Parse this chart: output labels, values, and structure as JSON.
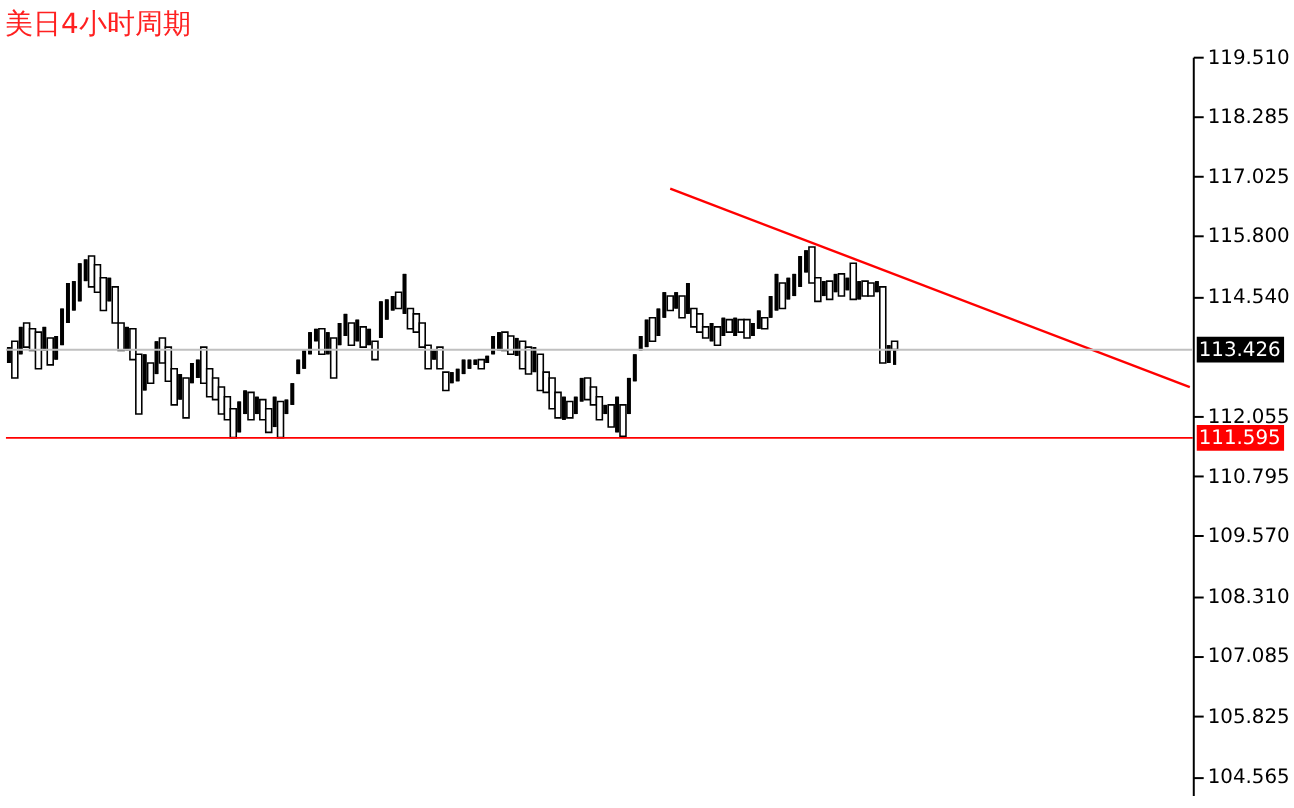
{
  "chart_data": {
    "type": "candlestick",
    "title": "美日4小时周期",
    "color": "#000000",
    "categories": [
      null,
      null,
      null,
      null,
      null,
      null,
      null,
      null,
      null,
      null,
      null,
      null,
      null,
      null,
      null,
      null,
      null,
      null,
      null,
      null,
      null,
      null,
      null,
      null,
      null,
      null,
      null,
      null,
      null,
      null,
      null,
      null,
      null,
      null,
      null,
      null,
      null,
      null,
      null,
      null,
      null,
      null,
      null,
      null,
      null,
      null,
      null,
      null,
      null,
      null,
      null,
      null,
      null,
      null,
      null,
      null,
      null,
      null,
      null,
      null,
      null,
      null,
      null,
      null,
      null,
      null,
      null,
      null,
      null,
      null,
      null,
      null,
      null,
      null,
      null,
      null,
      null,
      null,
      null,
      null,
      null,
      null,
      null,
      null,
      null,
      null,
      null,
      null,
      null,
      null,
      null,
      null,
      null,
      null,
      null,
      null,
      null,
      null,
      null,
      null,
      null,
      null,
      null,
      null,
      null,
      null,
      null,
      null,
      null,
      null,
      null,
      null,
      null,
      null,
      null,
      null,
      null,
      null,
      null,
      null,
      null,
      null,
      null,
      null,
      null,
      null,
      null,
      null,
      null,
      null,
      null,
      null,
      null,
      null,
      null,
      null,
      null,
      null,
      null,
      null,
      null,
      null,
      null,
      null,
      null,
      null,
      null,
      null,
      null,
      null,
      null,
      null,
      null,
      null,
      null,
      null,
      null,
      null,
      null,
      null,
      null,
      null,
      null,
      null,
      null,
      null,
      null,
      null,
      null,
      null,
      null,
      null,
      null,
      null,
      null,
      null,
      null,
      null,
      null,
      null,
      null,
      null,
      null,
      null,
      null,
      null,
      null,
      null,
      null,
      null,
      null,
      null,
      null,
      null,
      null,
      null,
      null,
      null,
      null,
      null,
      null
    ],
    "ohlc": [
      [
        113.15,
        113.48,
        113.15,
        113.48
      ],
      [
        113.6,
        113.6,
        112.84,
        112.84
      ],
      [
        113.33,
        113.9,
        113.33,
        113.9
      ],
      [
        113.98,
        113.98,
        113.48,
        113.48
      ],
      [
        113.86,
        113.86,
        113.41,
        113.41
      ],
      [
        113.79,
        113.79,
        113.03,
        113.03
      ],
      [
        113.41,
        113.9,
        113.41,
        113.9
      ],
      [
        113.67,
        113.67,
        113.11,
        113.11
      ],
      [
        113.22,
        113.71,
        113.22,
        113.71
      ],
      [
        113.52,
        114.28,
        113.52,
        114.28
      ],
      [
        113.98,
        114.81,
        113.98,
        114.81
      ],
      [
        114.24,
        114.85,
        114.24,
        114.85
      ],
      [
        114.43,
        115.22,
        114.43,
        115.22
      ],
      [
        114.85,
        115.3,
        114.85,
        115.3
      ],
      [
        115.37,
        115.37,
        114.73,
        114.73
      ],
      [
        115.19,
        115.19,
        114.62,
        114.62
      ],
      [
        114.92,
        114.92,
        114.24,
        114.24
      ],
      [
        114.43,
        114.92,
        114.43,
        114.92
      ],
      [
        114.73,
        114.73,
        113.98,
        113.98
      ],
      [
        113.98,
        113.98,
        113.41,
        113.41
      ],
      [
        113.41,
        113.9,
        113.41,
        113.9
      ],
      [
        113.86,
        113.86,
        113.22,
        113.22
      ],
      [
        113.33,
        113.33,
        112.09,
        112.09
      ],
      [
        112.58,
        113.33,
        112.58,
        113.33
      ],
      [
        113.15,
        113.15,
        112.73,
        112.73
      ],
      [
        112.92,
        113.6,
        112.92,
        113.6
      ],
      [
        113.67,
        113.67,
        113.15,
        113.15
      ],
      [
        113.48,
        113.48,
        112.77,
        112.77
      ],
      [
        113.03,
        113.03,
        112.28,
        112.28
      ],
      [
        112.39,
        112.92,
        112.39,
        112.92
      ],
      [
        112.84,
        112.84,
        112.01,
        112.01
      ],
      [
        112.73,
        113.15,
        112.73,
        113.15
      ],
      [
        112.84,
        113.22,
        112.84,
        113.22
      ],
      [
        113.48,
        113.48,
        112.73,
        112.73
      ],
      [
        113.03,
        113.03,
        112.45,
        112.45
      ],
      [
        112.84,
        112.84,
        112.39,
        112.39
      ],
      [
        112.65,
        112.65,
        112.09,
        112.09
      ],
      [
        112.45,
        112.45,
        111.97,
        111.97
      ],
      [
        112.2,
        112.2,
        111.6,
        111.6
      ],
      [
        111.71,
        112.35,
        111.71,
        112.35
      ],
      [
        112.09,
        112.58,
        112.09,
        112.58
      ],
      [
        112.54,
        112.54,
        111.97,
        111.97
      ],
      [
        112.09,
        112.45,
        112.09,
        112.45
      ],
      [
        112.39,
        112.39,
        111.97,
        111.97
      ],
      [
        112.2,
        112.2,
        111.71,
        111.71
      ],
      [
        111.82,
        112.45,
        111.82,
        112.45
      ],
      [
        112.35,
        112.35,
        111.6,
        111.6
      ],
      [
        112.09,
        112.39,
        112.09,
        112.39
      ],
      [
        112.28,
        112.73,
        112.28,
        112.73
      ],
      [
        112.92,
        113.22,
        112.92,
        113.22
      ],
      [
        113.03,
        113.41,
        113.03,
        113.41
      ],
      [
        113.33,
        113.79,
        113.33,
        113.79
      ],
      [
        113.6,
        113.86,
        113.6,
        113.86
      ],
      [
        113.86,
        113.86,
        113.33,
        113.33
      ],
      [
        113.33,
        113.79,
        113.33,
        113.79
      ],
      [
        113.67,
        113.67,
        112.84,
        112.84
      ],
      [
        113.52,
        113.98,
        113.52,
        113.98
      ],
      [
        113.71,
        114.17,
        113.71,
        114.17
      ],
      [
        113.98,
        113.98,
        113.52,
        113.52
      ],
      [
        113.6,
        114.05,
        113.6,
        114.05
      ],
      [
        113.9,
        113.9,
        113.48,
        113.48
      ],
      [
        113.52,
        113.86,
        113.52,
        113.86
      ],
      [
        113.6,
        113.6,
        113.22,
        113.22
      ],
      [
        113.67,
        114.43,
        113.67,
        114.43
      ],
      [
        114.05,
        114.47,
        114.05,
        114.47
      ],
      [
        114.24,
        114.54,
        114.24,
        114.54
      ],
      [
        114.62,
        114.62,
        114.28,
        114.28
      ],
      [
        114.17,
        115.0,
        114.17,
        115.0
      ],
      [
        114.28,
        114.28,
        113.86,
        113.86
      ],
      [
        114.17,
        114.17,
        113.79,
        113.79
      ],
      [
        113.98,
        113.98,
        113.48,
        113.48
      ],
      [
        113.52,
        113.52,
        113.03,
        113.03
      ],
      [
        113.22,
        113.41,
        113.22,
        113.41
      ],
      [
        113.48,
        113.48,
        113.03,
        113.03
      ],
      [
        112.96,
        112.96,
        112.58,
        112.58
      ],
      [
        112.73,
        112.96,
        112.73,
        112.96
      ],
      [
        112.77,
        113.03,
        112.77,
        113.03
      ],
      [
        112.92,
        113.22,
        112.92,
        113.22
      ],
      [
        113.03,
        113.22,
        113.03,
        113.22
      ],
      [
        113.11,
        113.22,
        113.11,
        113.22
      ],
      [
        113.22,
        113.22,
        113.03,
        113.03
      ],
      [
        113.15,
        113.3,
        113.15,
        113.3
      ],
      [
        113.33,
        113.71,
        113.33,
        113.71
      ],
      [
        113.41,
        113.79,
        113.41,
        113.79
      ],
      [
        113.79,
        113.79,
        113.41,
        113.41
      ],
      [
        113.71,
        113.71,
        113.33,
        113.33
      ],
      [
        113.3,
        113.67,
        113.3,
        113.67
      ],
      [
        113.6,
        113.6,
        113.03,
        113.03
      ],
      [
        113.48,
        113.48,
        112.92,
        112.92
      ],
      [
        112.96,
        113.48,
        112.96,
        113.48
      ],
      [
        113.33,
        113.33,
        112.58,
        112.58
      ],
      [
        112.96,
        112.96,
        112.54,
        112.54
      ],
      [
        112.84,
        112.84,
        112.2,
        112.2
      ],
      [
        112.54,
        112.54,
        112.01,
        112.01
      ],
      [
        111.97,
        112.45,
        111.97,
        112.45
      ],
      [
        112.35,
        112.35,
        112.01,
        112.01
      ],
      [
        112.09,
        112.45,
        112.09,
        112.45
      ],
      [
        112.35,
        112.84,
        112.35,
        112.84
      ],
      [
        112.84,
        112.84,
        112.39,
        112.39
      ],
      [
        112.65,
        112.65,
        112.28,
        112.28
      ],
      [
        112.45,
        112.45,
        111.97,
        111.97
      ],
      [
        112.09,
        112.28,
        112.09,
        112.28
      ],
      [
        112.28,
        112.28,
        111.82,
        111.82
      ],
      [
        111.71,
        112.45,
        111.71,
        112.45
      ],
      [
        112.28,
        112.28,
        111.63,
        111.63
      ],
      [
        112.09,
        112.84,
        112.09,
        112.84
      ],
      [
        112.77,
        113.33,
        112.77,
        113.33
      ],
      [
        113.41,
        113.71,
        113.41,
        113.71
      ],
      [
        113.48,
        114.05,
        113.48,
        114.05
      ],
      [
        114.09,
        114.09,
        113.6,
        113.6
      ],
      [
        113.71,
        114.28,
        113.71,
        114.28
      ],
      [
        114.09,
        114.62,
        114.09,
        114.62
      ],
      [
        114.54,
        114.54,
        114.24,
        114.24
      ],
      [
        114.28,
        114.62,
        114.28,
        114.62
      ],
      [
        114.54,
        114.54,
        114.09,
        114.09
      ],
      [
        114.17,
        114.81,
        114.17,
        114.81
      ],
      [
        114.28,
        114.28,
        113.9,
        113.9
      ],
      [
        114.17,
        114.17,
        113.79,
        113.79
      ],
      [
        113.9,
        113.9,
        113.67,
        113.67
      ],
      [
        113.6,
        113.98,
        113.6,
        113.98
      ],
      [
        113.9,
        113.9,
        113.52,
        113.52
      ],
      [
        113.71,
        114.09,
        113.71,
        114.09
      ],
      [
        114.05,
        114.05,
        113.79,
        113.79
      ],
      [
        113.71,
        114.09,
        113.71,
        114.09
      ],
      [
        114.05,
        114.05,
        113.79,
        113.79
      ],
      [
        114.05,
        114.05,
        113.67,
        113.67
      ],
      [
        113.71,
        113.98,
        113.71,
        113.98
      ],
      [
        113.86,
        114.24,
        113.86,
        114.24
      ],
      [
        114.09,
        114.09,
        113.86,
        113.86
      ],
      [
        114.09,
        114.54,
        114.09,
        114.54
      ],
      [
        114.24,
        115.0,
        114.24,
        115.0
      ],
      [
        114.81,
        114.81,
        114.28,
        114.28
      ],
      [
        114.47,
        114.92,
        114.47,
        114.92
      ],
      [
        114.54,
        115.0,
        114.54,
        115.0
      ],
      [
        114.73,
        115.37,
        114.73,
        115.37
      ],
      [
        115.03,
        115.49,
        115.03,
        115.49
      ],
      [
        115.56,
        115.56,
        114.81,
        114.81
      ],
      [
        114.92,
        114.92,
        114.43,
        114.43
      ],
      [
        114.54,
        114.85,
        114.54,
        114.85
      ],
      [
        114.85,
        114.85,
        114.47,
        114.47
      ],
      [
        114.62,
        115.0,
        114.62,
        115.0
      ],
      [
        115.0,
        115.0,
        114.54,
        114.54
      ],
      [
        114.66,
        114.92,
        114.66,
        114.92
      ],
      [
        115.22,
        115.22,
        114.47,
        114.47
      ],
      [
        114.47,
        114.85,
        114.47,
        114.85
      ],
      [
        114.85,
        114.85,
        114.54,
        114.54
      ],
      [
        114.81,
        114.81,
        114.54,
        114.54
      ],
      [
        114.62,
        114.85,
        114.62,
        114.85
      ],
      [
        114.73,
        114.73,
        113.15,
        113.15
      ],
      [
        113.15,
        113.52,
        113.15,
        113.52
      ],
      [
        113.6,
        113.6,
        113.11,
        113.43
      ],
      null,
      null,
      null,
      null,
      null,
      null,
      null,
      null,
      null,
      null,
      null,
      null,
      null,
      null,
      null,
      null,
      null,
      null,
      null,
      null,
      null,
      null,
      null,
      null,
      null,
      null,
      null,
      null,
      null,
      null,
      null,
      null,
      null,
      null,
      null,
      null,
      null,
      null,
      null,
      null,
      null,
      null,
      null,
      null,
      null,
      null,
      null,
      null,
      null,
      null
    ],
    "series": [
      {
        "type": "line",
        "color": "#ff0000",
        "values": [
          null,
          null,
          null,
          null,
          null,
          null,
          null,
          null,
          null,
          null,
          null,
          null,
          null,
          null,
          null,
          null,
          null,
          null,
          null,
          null,
          null,
          null,
          null,
          null,
          null,
          null,
          null,
          null,
          null,
          null,
          null,
          null,
          null,
          null,
          null,
          null,
          null,
          null,
          null,
          null,
          null,
          null,
          null,
          null,
          null,
          null,
          null,
          null,
          null,
          null,
          null,
          null,
          null,
          null,
          null,
          null,
          null,
          null,
          null,
          null,
          null,
          null,
          null,
          null,
          null,
          null,
          null,
          null,
          null,
          null,
          null,
          null,
          null,
          null,
          null,
          null,
          null,
          null,
          null,
          null,
          null,
          null,
          null,
          null,
          null,
          null,
          null,
          null,
          null,
          null,
          null,
          null,
          null,
          null,
          null,
          null,
          null,
          null,
          null,
          null,
          null,
          null,
          null,
          null,
          null,
          null,
          null,
          null,
          null,
          null,
          null,
          null,
          116.77,
          null,
          null,
          null,
          null,
          null,
          null,
          null,
          null,
          null,
          null,
          null,
          null,
          null,
          null,
          null,
          null,
          null,
          null,
          null,
          null,
          null,
          null,
          null,
          null,
          null,
          null,
          null,
          null,
          null,
          null,
          null,
          null,
          null,
          null,
          null,
          null,
          null,
          null,
          null,
          null,
          null,
          null,
          null,
          null,
          null,
          null,
          null,
          null,
          null,
          null,
          null,
          null,
          null,
          null,
          null,
          null,
          null,
          null,
          null,
          null,
          null,
          null,
          null,
          null,
          null,
          null,
          null,
          null,
          null,
          null,
          null,
          null,
          null,
          null,
          null,
          null,
          null,
          null,
          null,
          null,
          null,
          null,
          null,
          null,
          null,
          null,
          null,
          112.65
        ]
      }
    ],
    "ylim": [
      104.18,
      119.51
    ],
    "yticks": [
      {
        "value": 119.51,
        "label": "119.510"
      },
      118.285,
      117.025,
      {
        "value": 115.8,
        "label": "115.800"
      },
      {
        "value": 114.54,
        "label": "114.540"
      },
      112.055,
      110.795,
      {
        "value": 109.57,
        "label": "109.570"
      },
      {
        "value": 108.31,
        "label": "108.310"
      },
      107.085,
      105.825,
      104.565
    ],
    "ref_lines": [
      {
        "axis": "y",
        "value": 113.426,
        "label": "113.426",
        "color": "#c0c0c0"
      },
      {
        "axis": "y",
        "value": 111.595,
        "label": "111.595",
        "color": "#ff0000"
      }
    ],
    "tick_labels": "y",
    "grid": false
  }
}
